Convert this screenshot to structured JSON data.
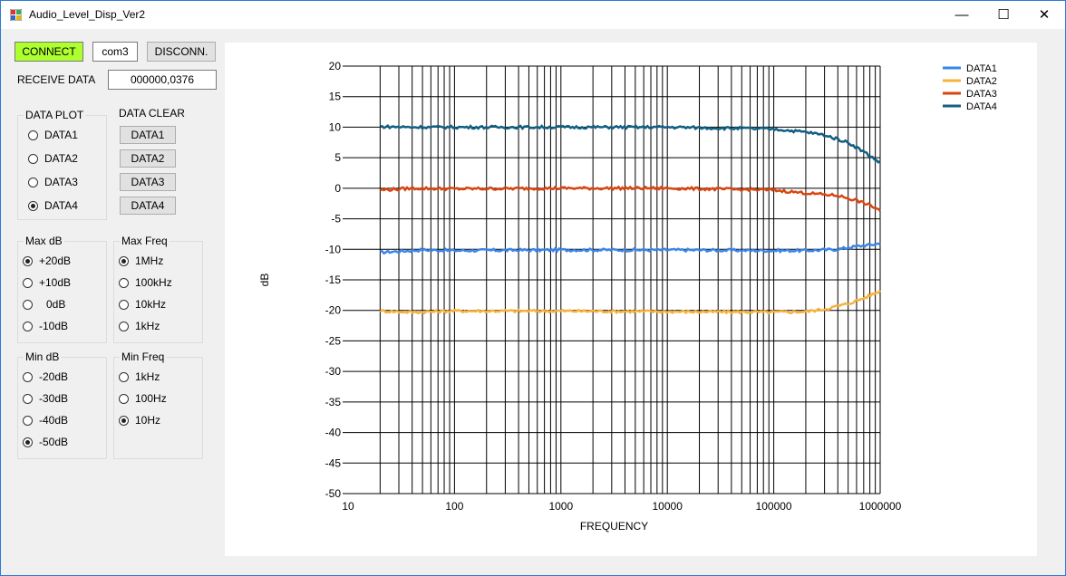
{
  "window": {
    "title": "Audio_Level_Disp_Ver2",
    "minimize_glyph": "—",
    "maximize_glyph": "☐",
    "close_glyph": "✕"
  },
  "connection": {
    "connect_label": "CONNECT",
    "port": "com3",
    "disconnect_label": "DISCONN.",
    "receive_label": "RECEIVE DATA",
    "receive_value": "000000,0376"
  },
  "data_plot": {
    "title": "DATA PLOT",
    "options": [
      "DATA1",
      "DATA2",
      "DATA3",
      "DATA4"
    ],
    "selected": 3
  },
  "data_clear": {
    "title": "DATA CLEAR",
    "buttons": [
      "DATA1",
      "DATA2",
      "DATA3",
      "DATA4"
    ]
  },
  "max_db": {
    "title": "Max dB",
    "options": [
      "+20dB",
      "+10dB",
      "0dB",
      "-10dB"
    ],
    "selected": 0
  },
  "max_freq": {
    "title": "Max Freq",
    "options": [
      "1MHz",
      "100kHz",
      "10kHz",
      "1kHz"
    ],
    "selected": 0
  },
  "min_db": {
    "title": "Min dB",
    "options": [
      "-20dB",
      "-30dB",
      "-40dB",
      "-50dB"
    ],
    "selected": 3
  },
  "min_freq": {
    "title": "Min Freq",
    "options": [
      "1kHz",
      "100Hz",
      "10Hz"
    ],
    "selected": 2
  },
  "colors": {
    "data1": "#3a86e8",
    "data2": "#f7b33b",
    "data3": "#d9450f",
    "data4": "#125f83",
    "connect_bg": "#adff2f"
  },
  "chart_data": {
    "type": "line",
    "xlabel": "FREQUENCY",
    "ylabel": "dB",
    "x_scale": "log",
    "xlim": [
      10,
      1000000
    ],
    "ylim": [
      -50,
      20
    ],
    "x_ticks": [
      "10",
      "100",
      "1000",
      "10000",
      "100000",
      "1000000"
    ],
    "y_ticks": [
      "20",
      "15",
      "10",
      "5",
      "0",
      "-5",
      "-10",
      "-15",
      "-20",
      "-25",
      "-30",
      "-35",
      "-40",
      "-45",
      "-50"
    ],
    "grid": true,
    "legend_position": "top-right",
    "series": [
      {
        "name": "DATA1",
        "color": "#3a86e8",
        "points": [
          [
            20,
            -10.5
          ],
          [
            50,
            -10.1
          ],
          [
            100,
            -10.2
          ],
          [
            1000,
            -10.1
          ],
          [
            10000,
            -10.1
          ],
          [
            100000,
            -10.2
          ],
          [
            200000,
            -10.2
          ],
          [
            400000,
            -10.0
          ],
          [
            600000,
            -9.5
          ],
          [
            800000,
            -9.3
          ],
          [
            1000000,
            -9.0
          ]
        ]
      },
      {
        "name": "DATA2",
        "color": "#f7b33b",
        "points": [
          [
            20,
            -20.1
          ],
          [
            40,
            -20.3
          ],
          [
            100,
            -20.1
          ],
          [
            1000,
            -20.1
          ],
          [
            10000,
            -20.2
          ],
          [
            100000,
            -20.3
          ],
          [
            200000,
            -20.2
          ],
          [
            300000,
            -19.8
          ],
          [
            500000,
            -18.9
          ],
          [
            700000,
            -18.0
          ],
          [
            1000000,
            -16.8
          ]
        ]
      },
      {
        "name": "DATA3",
        "color": "#d9450f",
        "points": [
          [
            20,
            -0.3
          ],
          [
            40,
            0.0
          ],
          [
            100,
            -0.1
          ],
          [
            1000,
            0.0
          ],
          [
            10000,
            0.0
          ],
          [
            100000,
            -0.3
          ],
          [
            200000,
            -0.8
          ],
          [
            400000,
            -1.2
          ],
          [
            600000,
            -2.0
          ],
          [
            800000,
            -2.8
          ],
          [
            1000000,
            -3.6
          ]
        ]
      },
      {
        "name": "DATA4",
        "color": "#125f83",
        "points": [
          [
            20,
            10.1
          ],
          [
            40,
            10.0
          ],
          [
            100,
            10.0
          ],
          [
            1000,
            10.0
          ],
          [
            10000,
            10.0
          ],
          [
            100000,
            9.7
          ],
          [
            200000,
            9.2
          ],
          [
            300000,
            8.7
          ],
          [
            500000,
            7.5
          ],
          [
            700000,
            6.0
          ],
          [
            850000,
            5.0
          ],
          [
            1000000,
            4.2
          ]
        ]
      }
    ]
  }
}
